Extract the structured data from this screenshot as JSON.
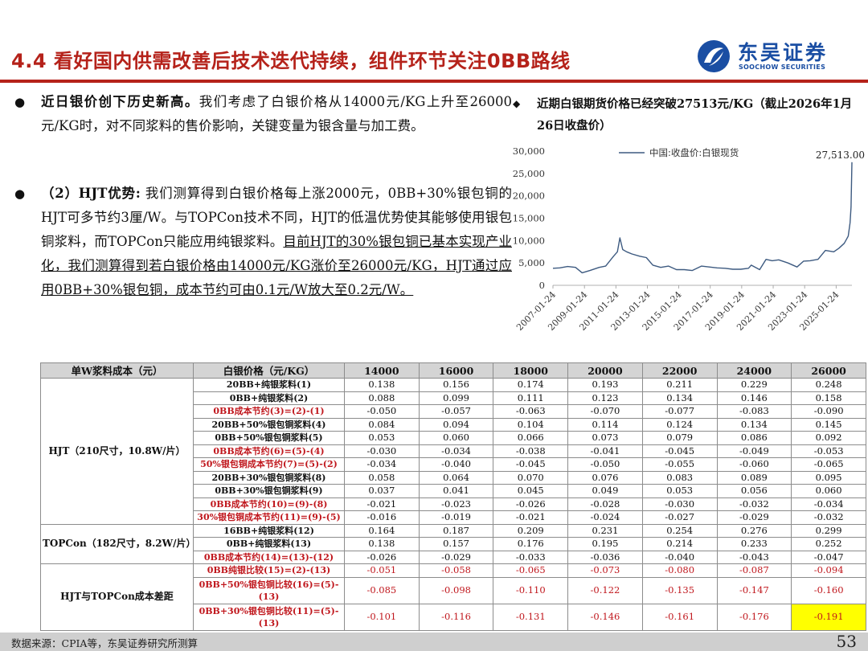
{
  "header": {
    "title": "4.4 看好国内供需改善后技术迭代持续，组件环节关注0BB路线",
    "logo_cn": "东吴证券",
    "logo_en": "SOOCHOW SECURITIES",
    "accent_color": "#b5221a",
    "brand_color": "#1a4ea3"
  },
  "left": {
    "p1_bold": "近日银价创下历史新高。",
    "p1_text": "我们考虑了白银价格从14000元/KG上升至26000元/KG时，对不同浆料的售价影响，关键变量为银含量与加工费。",
    "p2_bold": "（2）HJT优势:",
    "p2_text": " 我们测算得到白银价格每上涨2000元，0BB+30%银包铜的HJT可多节约3厘/W。与TOPCon技术不同，HJT的低温优势使其能够使用银包铜浆料，而TOPCon只能应用纯银浆料。",
    "p2_underline": "目前HJT的30%银包铜已基本实现产业化，我们测算得到若白银价格由14000元/KG涨价至26000元/KG，HJT通过应用0BB+30%银包铜，成本节约可由0.1元/W放大至0.2元/W。"
  },
  "right": {
    "title": "近期白银期货价格已经突破27513元/KG（截止2026年1月26日收盘价）"
  },
  "chart_data": {
    "type": "line",
    "series": [
      {
        "name": "中国:收盘价:白银现货",
        "color": "#3d5a80",
        "x": [
          "2007-01-24",
          "2007-07-01",
          "2008-01-01",
          "2008-07-01",
          "2008-12-01",
          "2009-06-01",
          "2010-01-01",
          "2010-06-01",
          "2010-12-01",
          "2011-03-01",
          "2011-04-28",
          "2011-07-01",
          "2011-10-01",
          "2012-02-01",
          "2012-08-01",
          "2013-01-01",
          "2013-06-01",
          "2013-12-01",
          "2014-06-01",
          "2014-12-01",
          "2015-06-01",
          "2015-12-01",
          "2016-07-01",
          "2017-01-01",
          "2017-07-01",
          "2018-01-01",
          "2018-07-01",
          "2019-01-01",
          "2019-07-01",
          "2019-09-01",
          "2020-03-15",
          "2020-08-10",
          "2021-01-01",
          "2021-06-01",
          "2022-01-01",
          "2022-08-01",
          "2023-01-01",
          "2023-06-01",
          "2023-12-01",
          "2024-05-20",
          "2024-12-01",
          "2025-04-01",
          "2025-08-01",
          "2025-11-01",
          "2025-12-15",
          "2026-01-05",
          "2026-01-26"
        ],
        "y": [
          3800,
          3900,
          4200,
          4000,
          2800,
          3300,
          4000,
          4300,
          6500,
          7500,
          10600,
          8000,
          7500,
          7000,
          6500,
          6200,
          4500,
          4000,
          4300,
          3500,
          3500,
          3300,
          4300,
          4100,
          3900,
          3800,
          3600,
          3600,
          3800,
          4500,
          3500,
          5800,
          5500,
          5700,
          5000,
          4100,
          5400,
          5500,
          5800,
          7800,
          7500,
          8300,
          9400,
          11000,
          14000,
          17500,
          27513
        ]
      }
    ],
    "yticks": [
      "0",
      "5,000",
      "10,000",
      "15,000",
      "20,000",
      "25,000",
      "30,000"
    ],
    "ylim": [
      0,
      30000
    ],
    "xticks": [
      "2007-01-24",
      "2009-01-24",
      "2011-01-24",
      "2013-01-24",
      "2015-01-24",
      "2017-01-24",
      "2019-01-24",
      "2021-01-24",
      "2023-01-24",
      "2025-01-24"
    ],
    "xlim": [
      "2007-01-24",
      "2026-01-26"
    ],
    "annotation": "27,513.00",
    "legend_position": "top"
  },
  "table": {
    "headers": [
      "单W浆料成本（元）",
      "白银价格（元/KG）",
      "14000",
      "16000",
      "18000",
      "20000",
      "22000",
      "24000",
      "26000"
    ],
    "groups": {
      "hjt": "HJT（210尺寸，10.8W/片）",
      "topcon": "TOPCon（182尺寸，8.2W/片）",
      "diff": "HJT与TOPCon成本差距"
    },
    "rows": [
      {
        "label": "20BB+纯银浆料(1)",
        "values": [
          "0.138",
          "0.156",
          "0.174",
          "0.193",
          "0.211",
          "0.229",
          "0.248"
        ]
      },
      {
        "label": "0BB+纯银浆料(2)",
        "values": [
          "0.088",
          "0.099",
          "0.111",
          "0.123",
          "0.134",
          "0.146",
          "0.158"
        ]
      },
      {
        "label": "0BB成本节约(3)=(2)-(1)",
        "values": [
          "-0.050",
          "-0.057",
          "-0.063",
          "-0.070",
          "-0.077",
          "-0.083",
          "-0.090"
        ]
      },
      {
        "label": "20BB+50%银包铜浆料(4)",
        "values": [
          "0.084",
          "0.094",
          "0.104",
          "0.114",
          "0.124",
          "0.134",
          "0.145"
        ]
      },
      {
        "label": "0BB+50%银包铜浆料(5)",
        "values": [
          "0.053",
          "0.060",
          "0.066",
          "0.073",
          "0.079",
          "0.086",
          "0.092"
        ]
      },
      {
        "label": "0BB成本节约(6)=(5)-(4)",
        "values": [
          "-0.030",
          "-0.034",
          "-0.038",
          "-0.041",
          "-0.045",
          "-0.049",
          "-0.053"
        ]
      },
      {
        "label": "50%银包铜成本节约(7)=(5)-(2)",
        "values": [
          "-0.034",
          "-0.040",
          "-0.045",
          "-0.050",
          "-0.055",
          "-0.060",
          "-0.065"
        ]
      },
      {
        "label": "20BB+30%银包铜浆料(8)",
        "values": [
          "0.058",
          "0.064",
          "0.070",
          "0.076",
          "0.083",
          "0.089",
          "0.095"
        ]
      },
      {
        "label": "0BB+30%银包铜浆料(9)",
        "values": [
          "0.037",
          "0.041",
          "0.045",
          "0.049",
          "0.053",
          "0.056",
          "0.060"
        ]
      },
      {
        "label": "0BB成本节约(10)=(9)-(8)",
        "values": [
          "-0.021",
          "-0.023",
          "-0.026",
          "-0.028",
          "-0.030",
          "-0.032",
          "-0.034"
        ]
      },
      {
        "label": "30%银包铜成本节约(11)=(9)-(5)",
        "values": [
          "-0.016",
          "-0.019",
          "-0.021",
          "-0.024",
          "-0.027",
          "-0.029",
          "-0.032"
        ]
      },
      {
        "label": "16BB+纯银浆料(12)",
        "values": [
          "0.164",
          "0.187",
          "0.209",
          "0.231",
          "0.254",
          "0.276",
          "0.299"
        ]
      },
      {
        "label": "0BB+纯银浆料(13)",
        "values": [
          "0.138",
          "0.157",
          "0.176",
          "0.195",
          "0.214",
          "0.233",
          "0.252"
        ]
      },
      {
        "label": "0BB成本节约(14)=(13)-(12)",
        "values": [
          "-0.026",
          "-0.029",
          "-0.033",
          "-0.036",
          "-0.040",
          "-0.043",
          "-0.047"
        ]
      },
      {
        "label": "0BB纯银比较(15)=(2)-(13)",
        "values": [
          "-0.051",
          "-0.058",
          "-0.065",
          "-0.073",
          "-0.080",
          "-0.087",
          "-0.094"
        ]
      },
      {
        "label": "0BB+50%银包铜比较(16)=(5)-(13)",
        "values": [
          "-0.085",
          "-0.098",
          "-0.110",
          "-0.122",
          "-0.135",
          "-0.147",
          "-0.160"
        ]
      },
      {
        "label": "0BB+30%银包铜比较(11)=(5)-(13)",
        "values": [
          "-0.101",
          "-0.116",
          "-0.131",
          "-0.146",
          "-0.161",
          "-0.176",
          "-0.191"
        ]
      }
    ],
    "highlight_color": "#ffff00"
  },
  "footer": {
    "source": "数据来源：CPIA等，东吴证券研究所测算",
    "page": "53"
  }
}
